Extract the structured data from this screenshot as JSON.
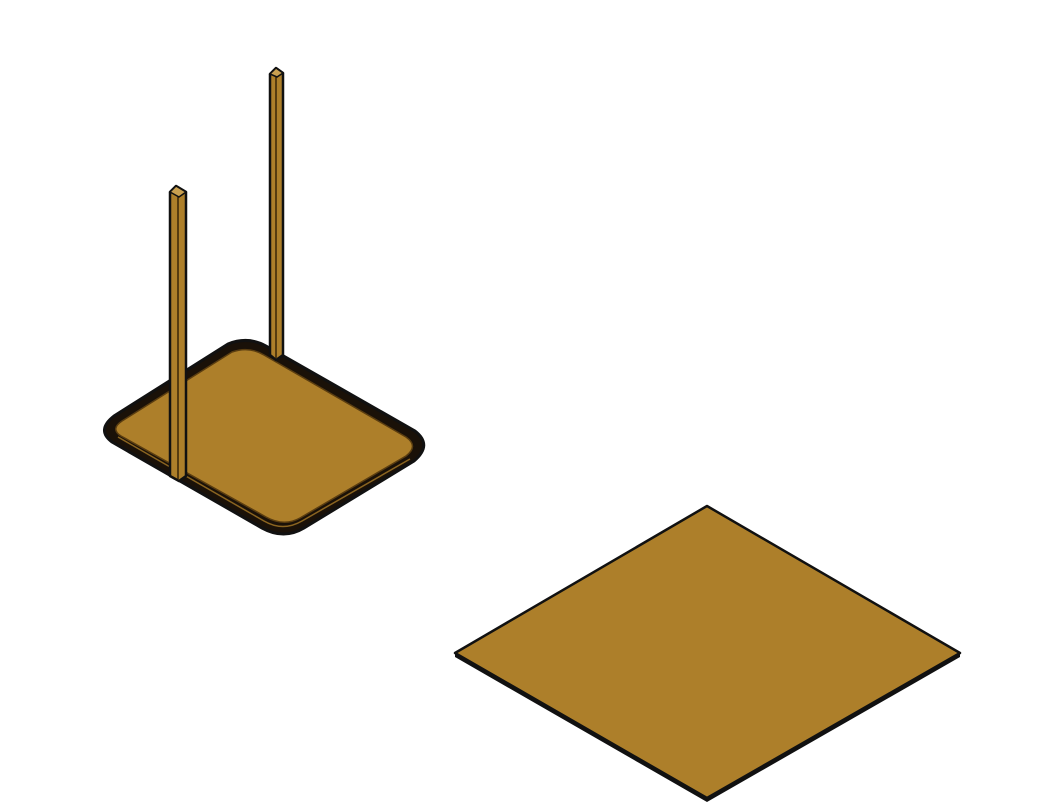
{
  "scene": {
    "background": "#ffffff",
    "material_color": "#ad7f2a",
    "edge_color": "#111111",
    "objects": [
      {
        "name": "base-with-two-posts",
        "parts": [
          "rounded-base-plate",
          "short-post",
          "tall-post"
        ]
      },
      {
        "name": "square-plate",
        "parts": [
          "square-plate"
        ]
      }
    ]
  }
}
